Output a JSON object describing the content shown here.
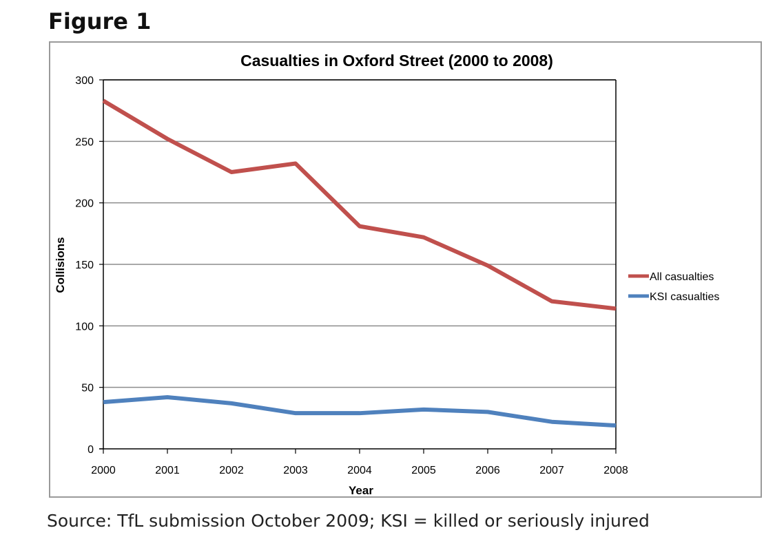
{
  "figure_label": "Figure 1",
  "source_note": "Source: TfL submission October 2009; KSI = killed or seriously injured",
  "chart_data": {
    "type": "line",
    "title": "Casualties in Oxford Street (2000 to 2008)",
    "xlabel": "Year",
    "ylabel": "Collisions",
    "x": [
      "2000",
      "2001",
      "2002",
      "2003",
      "2004",
      "2005",
      "2006",
      "2007",
      "2008"
    ],
    "ylim": [
      0,
      300
    ],
    "yticks": [
      "0",
      "50",
      "100",
      "150",
      "200",
      "250",
      "300"
    ],
    "grid": true,
    "legend_position": "right",
    "series": [
      {
        "name": "All casualties",
        "color": "#c0504d",
        "values": [
          283,
          252,
          225,
          232,
          181,
          172,
          149,
          120,
          114
        ]
      },
      {
        "name": "KSI casualties",
        "color": "#4f81bd",
        "values": [
          38,
          42,
          37,
          29,
          29,
          32,
          30,
          22,
          19
        ]
      }
    ]
  }
}
